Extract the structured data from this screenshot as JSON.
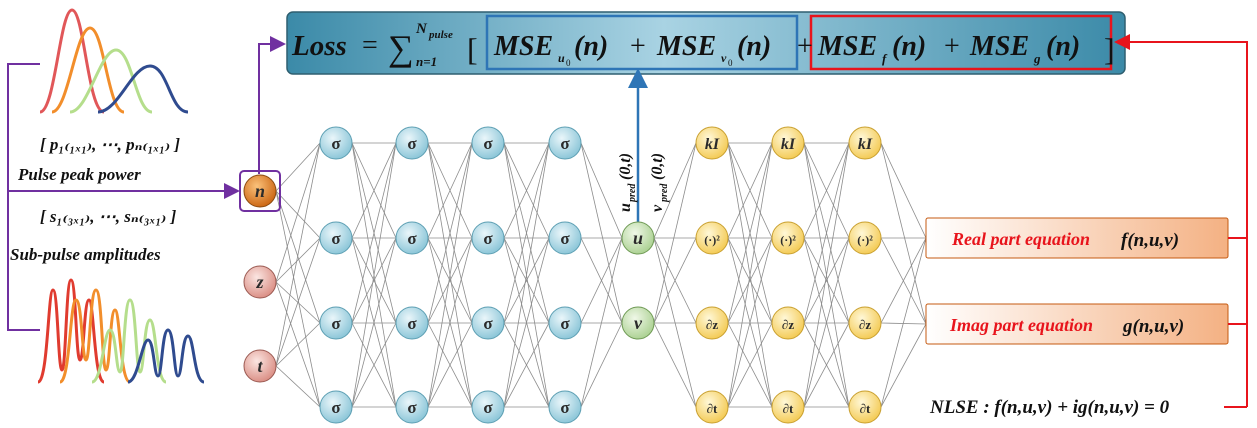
{
  "loss": {
    "label": "Loss",
    "equals": "=",
    "sum_symbol": "∑",
    "sum_upper": "N",
    "sum_upper_sub": "pulse",
    "sum_lower": "n=1",
    "term_mse_u0": "MSE",
    "term_mse_u0_sub": "u",
    "term_mse_u0_subsub": "0",
    "term_mse_v0": "MSE",
    "term_mse_v0_sub": "v",
    "term_mse_v0_subsub": "0",
    "term_mse_f": "MSE",
    "term_mse_f_sub": "f",
    "term_mse_g": "MSE",
    "term_mse_g_sub": "g",
    "arg": "(n)",
    "plus": "+",
    "open_bracket": "[",
    "close_bracket": "]"
  },
  "inputs": {
    "peak_power_vector": "[ p₁₍₁ₓ₁₎, ⋯, pₙ₍₁ₓ₁₎ ]",
    "peak_power_label": "Pulse peak power",
    "subpulse_vector": "[ s₁₍₃ₓ₁₎, ⋯, sₙ₍₃ₓ₁₎ ]",
    "subpulse_label": "Sub-pulse amplitudes",
    "node_n": "n",
    "node_z": "z",
    "node_t": "t"
  },
  "network": {
    "hidden_symbol": "σ",
    "output_u": "u",
    "output_v": "v",
    "upred": "u",
    "upred_sub": "pred",
    "upred_arg": "(0,t)",
    "vpred": "v",
    "vpred_sub": "pred",
    "vpred_arg": "(0,t)",
    "op_kI": "kI",
    "op_square": "(·)²",
    "op_dz": "∂z",
    "op_dt": "∂t"
  },
  "equations": {
    "real_label": "Real part equation",
    "real_func": "f(n,u,v)",
    "imag_label": "Imag part equation",
    "imag_func": "g(n,u,v)",
    "nlse": "NLSE : f(n,u,v) + ig(n,u,v) = 0"
  },
  "colors": {
    "purple": "#7030a0",
    "red": "#e8141c",
    "blue": "#2e75b6",
    "sigma_node": "#a9d8e6",
    "op_node": "#ffe28a",
    "out_node": "#c5e0b4",
    "input_node": "#e8a9a0",
    "n_node": "#e07b1a",
    "eq_box": "#f8cbad"
  }
}
